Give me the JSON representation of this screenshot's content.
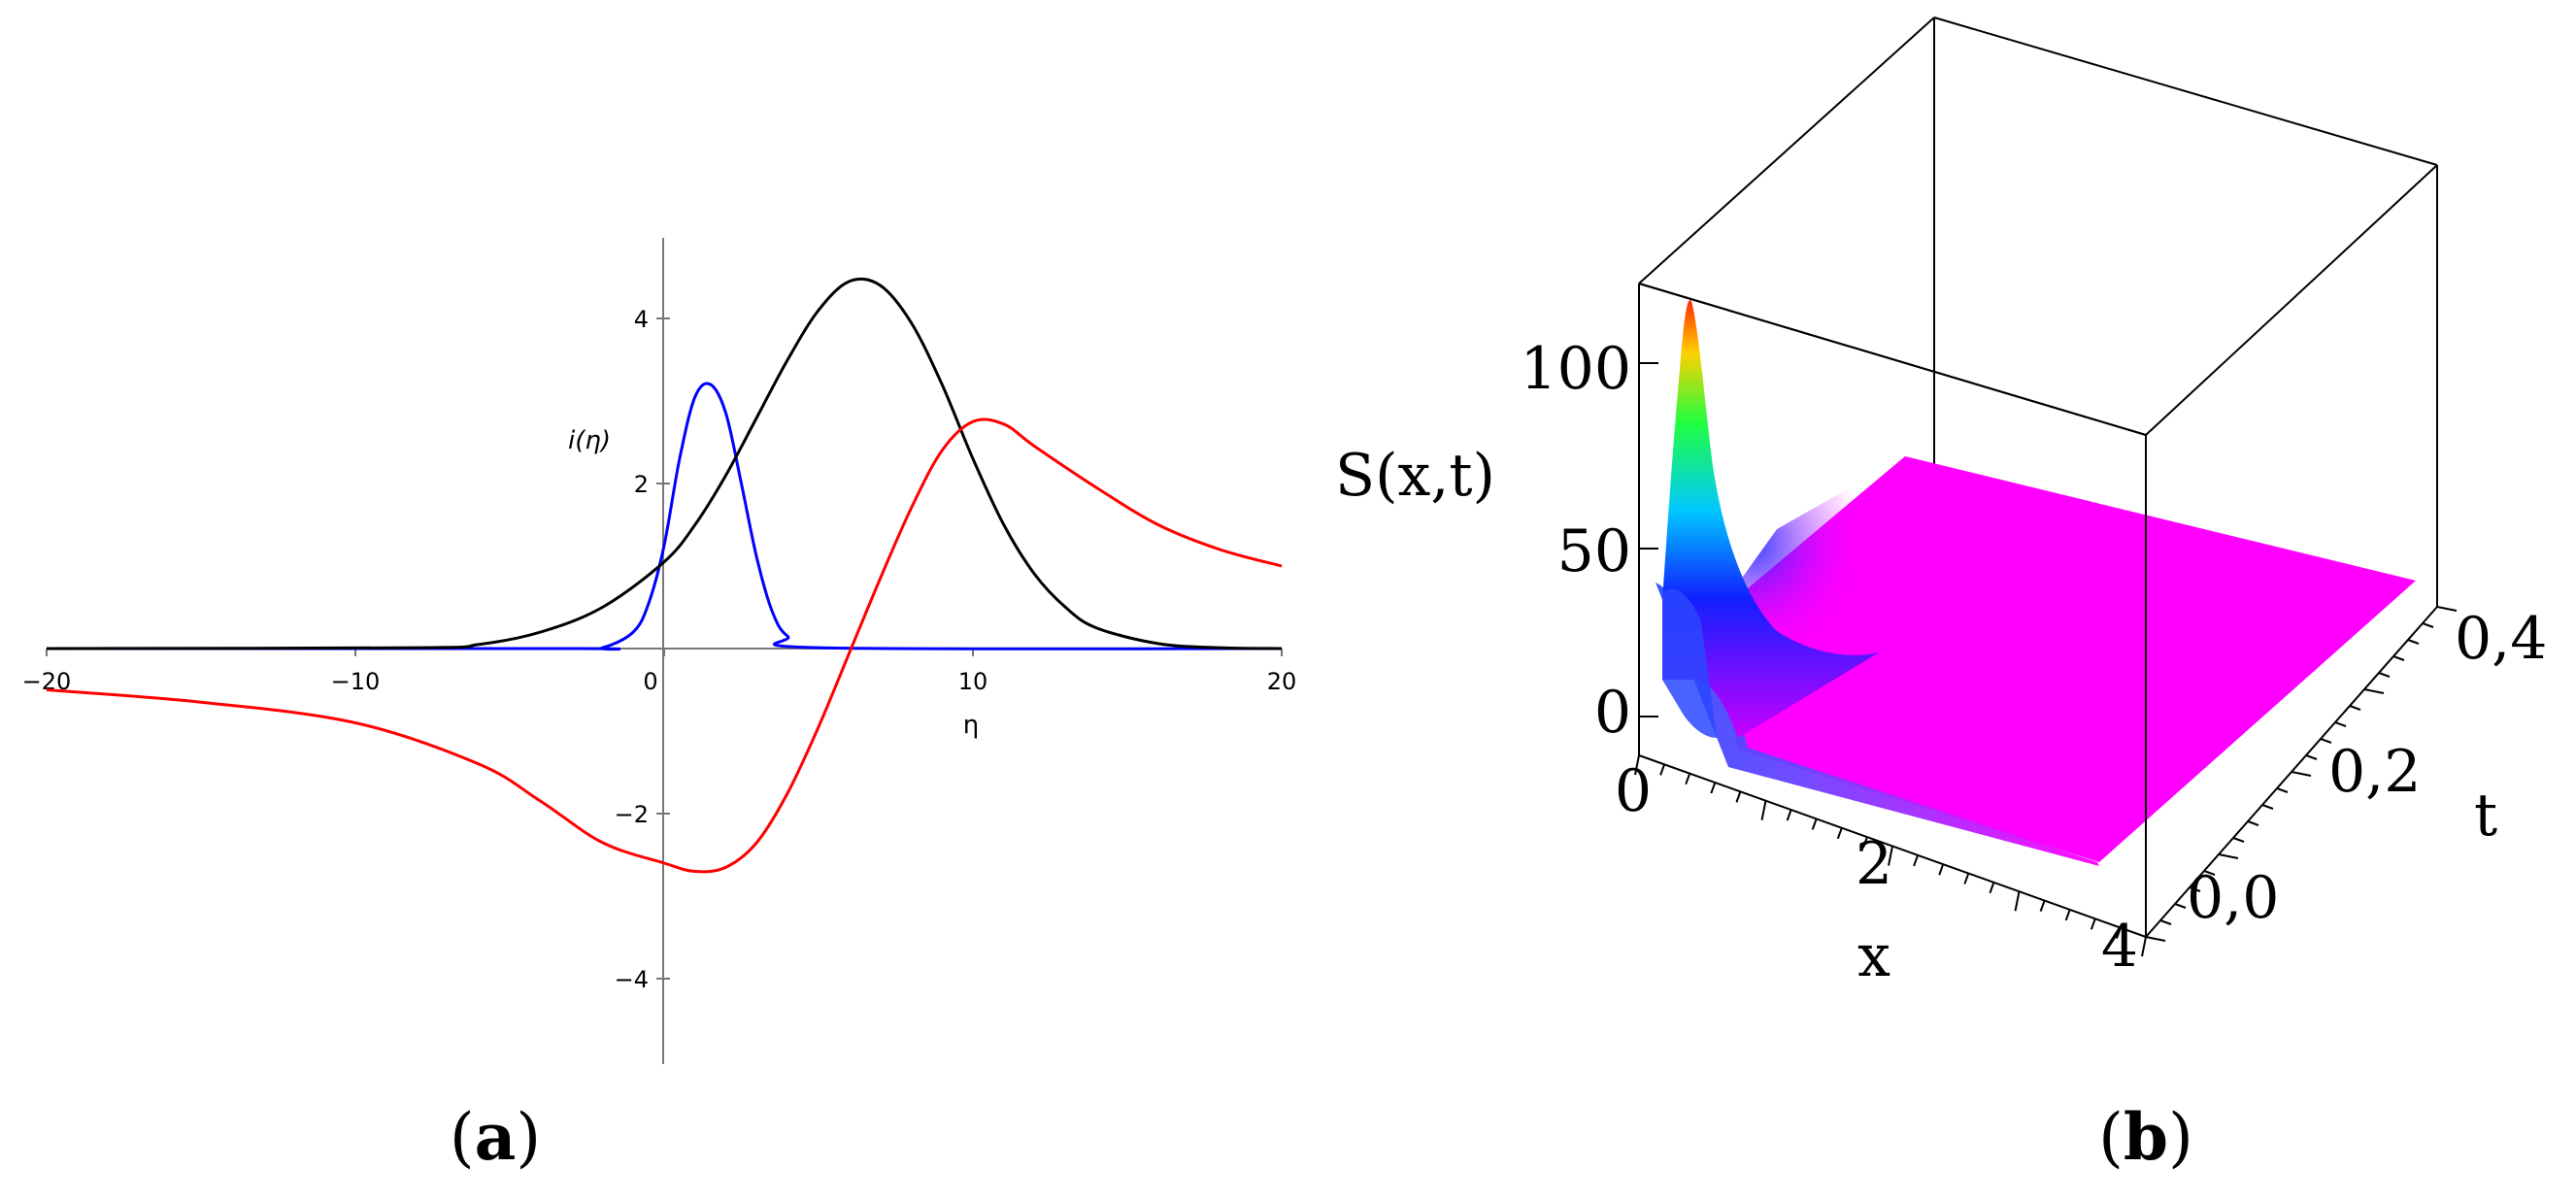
{
  "panels": {
    "a": {
      "open": "(",
      "letter": "a",
      "close": ")"
    },
    "b": {
      "open": "(",
      "letter": "b",
      "close": ")"
    }
  },
  "chart_data": [
    {
      "type": "line",
      "panel": "a",
      "ylabel": "i(η)",
      "xlabel": "η",
      "xlim": [
        -20,
        20
      ],
      "ylim": [
        -5,
        5
      ],
      "xticks": [
        -20,
        -10,
        0,
        10,
        20
      ],
      "xtick_labels": [
        "−20",
        "−10",
        "0",
        "10",
        "20"
      ],
      "yticks": [
        4,
        2,
        -2,
        -4
      ],
      "ytick_labels": [
        "4",
        "2",
        "−2",
        "−4"
      ],
      "grid": false,
      "legend": "none",
      "series": [
        {
          "color": "#0000ff",
          "x": [
            -20,
            -3,
            -2,
            -1,
            -0.5,
            0,
            0.5,
            1,
            1.5,
            2,
            2.5,
            3,
            3.5,
            4,
            5,
            20
          ],
          "y": [
            0,
            0,
            0.01,
            0.2,
            0.55,
            1.25,
            2.3,
            3.05,
            3.2,
            2.85,
            2.0,
            1.1,
            0.45,
            0.15,
            0.01,
            0
          ]
        },
        {
          "color": "#000000",
          "x": [
            -20,
            -8,
            -6,
            -4,
            -2,
            0,
            1,
            2,
            3,
            4,
            5,
            6,
            7,
            8,
            9,
            10,
            11,
            12,
            13,
            14,
            16,
            18,
            20
          ],
          "y": [
            0,
            0.01,
            0.05,
            0.2,
            0.5,
            1.05,
            1.5,
            2.1,
            2.8,
            3.5,
            4.1,
            4.45,
            4.4,
            3.95,
            3.2,
            2.3,
            1.5,
            0.9,
            0.5,
            0.25,
            0.06,
            0.01,
            0
          ]
        },
        {
          "color": "#ff0000",
          "x": [
            -20,
            -15,
            -10,
            -6,
            -4,
            -2,
            0,
            1,
            2,
            3,
            4,
            5,
            6,
            7,
            8,
            9,
            10,
            11,
            12,
            14,
            16,
            18,
            20
          ],
          "y": [
            -0.5,
            -0.65,
            -0.9,
            -1.4,
            -1.85,
            -2.35,
            -2.6,
            -2.7,
            -2.65,
            -2.35,
            -1.75,
            -0.95,
            -0.05,
            0.85,
            1.7,
            2.4,
            2.75,
            2.72,
            2.45,
            1.95,
            1.5,
            1.2,
            1.0
          ]
        }
      ]
    },
    {
      "type": "surface",
      "panel": "b",
      "zlabel": "S(x,t)",
      "xlabel": "x",
      "ylabel": "t",
      "xlim": [
        0,
        4
      ],
      "ylim": [
        0,
        0.4
      ],
      "zlim": [
        0,
        120
      ],
      "xtick_labels": [
        "0",
        "2",
        "4"
      ],
      "ytick_labels": [
        "0,0",
        "0,2",
        "0,4"
      ],
      "ztick_labels": [
        "0",
        "50",
        "100"
      ],
      "peak_value": 115,
      "colormap": [
        "#ff3000",
        "#00ff60",
        "#0080ff",
        "#0000ff",
        "#ff00ff"
      ]
    }
  ]
}
